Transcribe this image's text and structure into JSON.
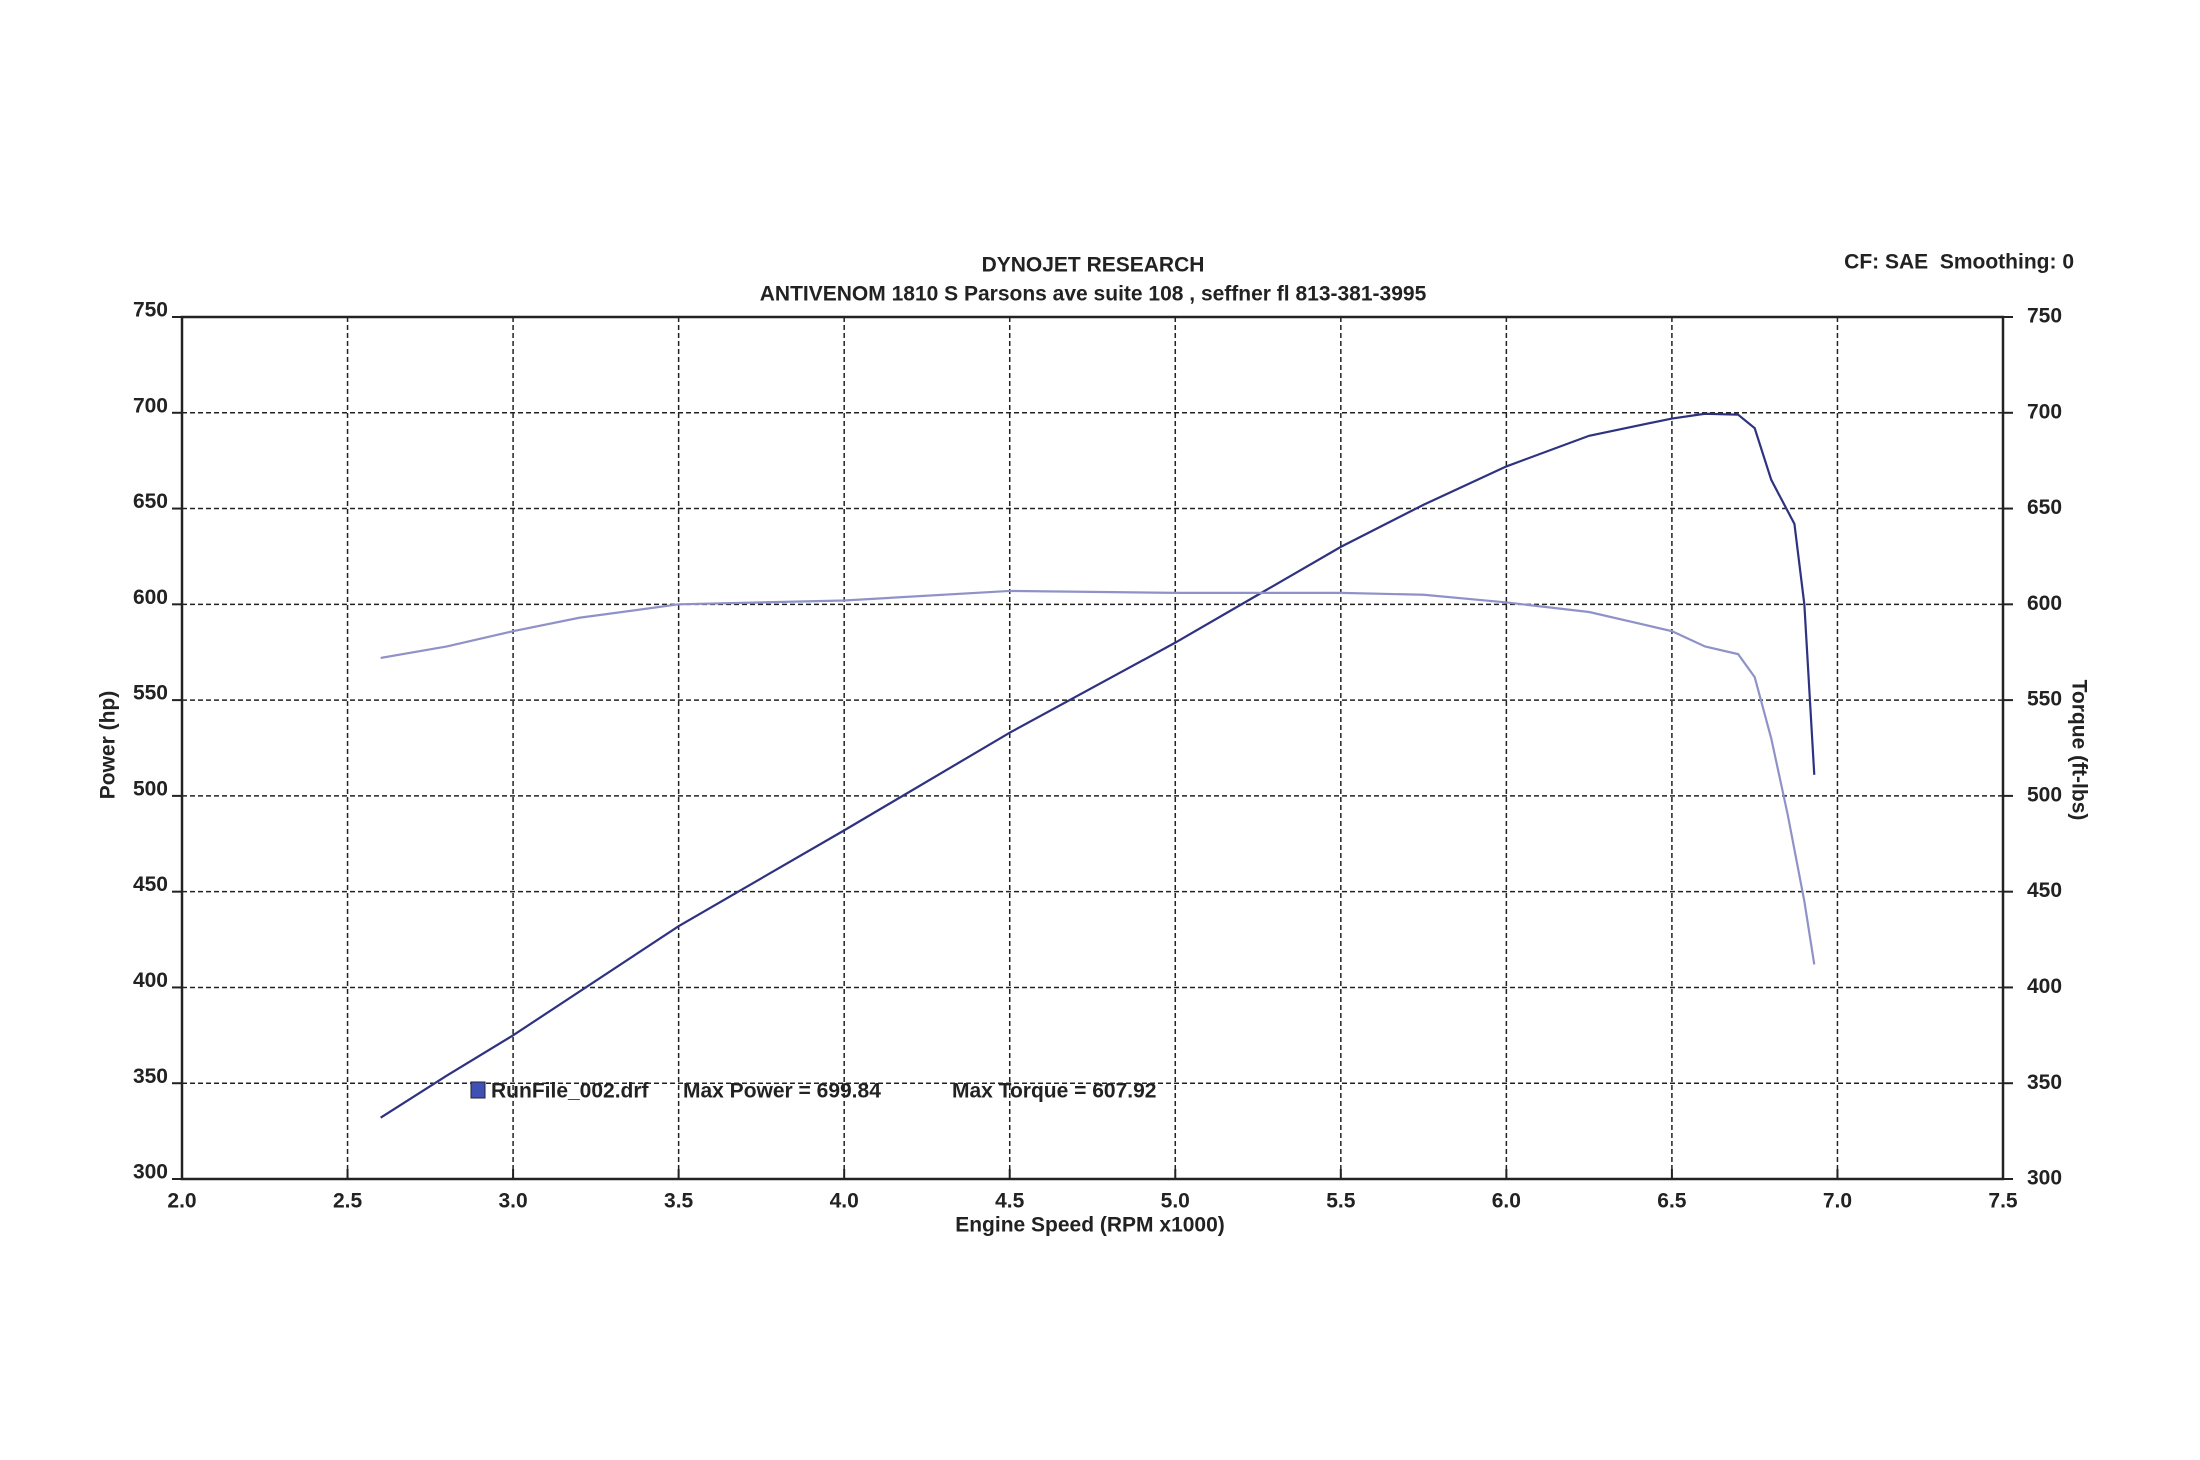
{
  "chart_data": {
    "type": "line",
    "title": "DYNOJET RESEARCH",
    "subtitle": "ANTIVENOM 1810 S Parsons ave suite 108 , seffner fl 813-381-3995",
    "corner_note": "CF: SAE  Smoothing: 0",
    "x_label": "Engine Speed (RPM x1000)",
    "y_label": "Power (hp)",
    "y2_label": "Torque (ft-lbs)",
    "legend": {
      "file": "RunFile_002.drf",
      "max_power": "Max Power = 699.84",
      "max_torque": "Max Torque = 607.92",
      "color": "#3f51b5"
    },
    "grid": true,
    "xlim": [
      2.0,
      7.5
    ],
    "xticks": [
      {
        "value": 2,
        "label": "2.0"
      },
      2.5,
      {
        "value": 3,
        "label": "3.0"
      },
      3.5,
      {
        "value": 4,
        "label": "4.0"
      },
      4.5,
      {
        "value": 5,
        "label": "5.0"
      },
      5.5,
      {
        "value": 6,
        "label": "6.0"
      },
      6.5,
      {
        "value": 7,
        "label": "7.0"
      },
      7.5
    ],
    "ylim": [
      300,
      750
    ],
    "yticks": [
      300,
      350,
      400,
      450,
      500,
      550,
      600,
      650,
      700,
      750
    ],
    "y2lim": [
      300,
      750
    ],
    "y2ticks": [
      300,
      350,
      400,
      450,
      500,
      550,
      600,
      650,
      700,
      750
    ],
    "series": [
      {
        "color": "#2e3280",
        "axis": "y",
        "x": [
          2.6,
          2.8,
          3.0,
          3.5,
          4.0,
          4.5,
          5.0,
          5.25,
          5.5,
          5.75,
          6.0,
          6.25,
          6.5,
          6.6,
          6.7,
          6.75,
          6.8,
          6.87,
          6.9,
          6.93
        ],
        "values": [
          332,
          354,
          375,
          432,
          482,
          533,
          580,
          605,
          630,
          652,
          672,
          688,
          697,
          699.5,
          699,
          692,
          665,
          642,
          600,
          511
        ]
      },
      {
        "color": "#8f92c8",
        "axis": "y2",
        "x": [
          2.6,
          2.8,
          3.0,
          3.2,
          3.5,
          4.0,
          4.5,
          5.0,
          5.5,
          5.75,
          6.0,
          6.25,
          6.5,
          6.6,
          6.7,
          6.75,
          6.8,
          6.85,
          6.9,
          6.93
        ],
        "values": [
          572,
          578,
          586,
          593,
          600,
          602,
          607,
          606,
          606,
          605,
          601,
          596,
          586,
          578,
          574,
          562,
          530,
          490,
          445,
          412
        ]
      }
    ]
  }
}
